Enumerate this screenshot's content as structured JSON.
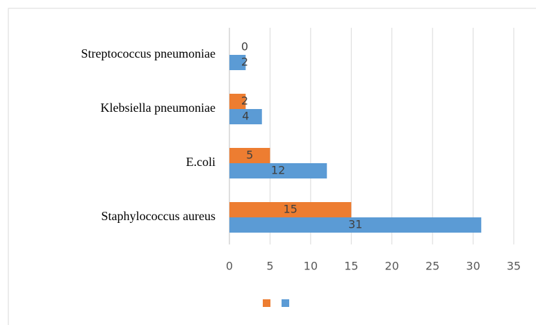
{
  "chart_data": {
    "type": "bar",
    "orientation": "horizontal",
    "categories": [
      "Staphylococcus  aureus",
      "E.coli",
      "Klebsiella pneumoniae",
      "Streptococcus pneumoniae"
    ],
    "series": [
      {
        "color": "#ed7d31",
        "values": [
          15,
          5,
          2,
          0
        ]
      },
      {
        "color": "#5b9bd5",
        "values": [
          31,
          12,
          4,
          2
        ]
      }
    ],
    "xlim": [
      0,
      35
    ],
    "xticks": [
      0,
      5,
      10,
      15,
      20,
      25,
      30,
      35
    ],
    "grid": true,
    "legend": "bottom"
  }
}
